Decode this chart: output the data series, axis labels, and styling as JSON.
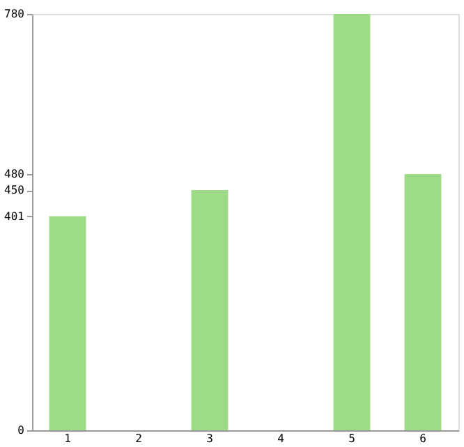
{
  "chart_data": {
    "type": "bar",
    "categories": [
      "1",
      "2",
      "3",
      "4",
      "5",
      "6"
    ],
    "values": [
      401,
      0,
      450,
      0,
      780,
      480
    ],
    "color": "#9ddb86",
    "ylim": [
      0,
      780
    ],
    "yticks": [
      0,
      401,
      450,
      480,
      780
    ],
    "grid": false
  }
}
